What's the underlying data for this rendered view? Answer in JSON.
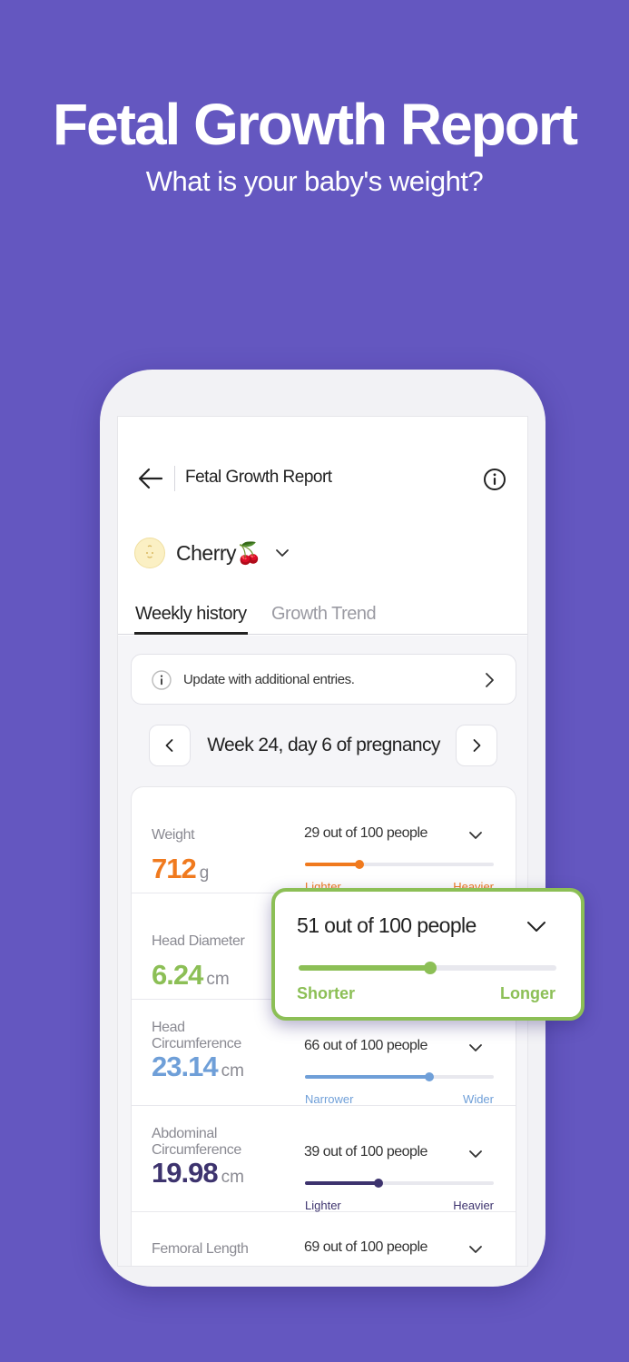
{
  "hero": {
    "title": "Fetal Growth Report",
    "subtitle": "What is your baby's weight?"
  },
  "appbar": {
    "title": "Fetal Growth Report"
  },
  "baby": {
    "name": "Cherry🍒"
  },
  "tabs": [
    {
      "label": "Weekly history",
      "active": true
    },
    {
      "label": "Growth Trend",
      "active": false
    }
  ],
  "notice": {
    "text": "Update with additional entries."
  },
  "week": {
    "label": "Week 24, day 6 of pregnancy"
  },
  "metrics": [
    {
      "name": "Weight",
      "value": "712",
      "unit": "g",
      "percentile_text": "29 out of 100 people",
      "percentile": 29,
      "low_label": "Lighter",
      "high_label": "Heavier",
      "color": "#f07a1e"
    },
    {
      "name": "Head Diameter",
      "value": "6.24",
      "unit": "cm",
      "percentile_text": "51 out of 100 people",
      "percentile": 51,
      "low_label": "Shorter",
      "high_label": "Longer",
      "color": "#8cbf56"
    },
    {
      "name": "Head Circumference",
      "value": "23.14",
      "unit": "cm",
      "percentile_text": "66 out of 100 people",
      "percentile": 66,
      "low_label": "Narrower",
      "high_label": "Wider",
      "color": "#6f9fd8"
    },
    {
      "name": "Abdominal Circumference",
      "value": "19.98",
      "unit": "cm",
      "percentile_text": "39 out of 100 people",
      "percentile": 39,
      "low_label": "Lighter",
      "high_label": "Heavier",
      "color": "#3d336e"
    },
    {
      "name": "Femoral Length",
      "value": "",
      "unit": "",
      "percentile_text": "69 out of 100 people",
      "percentile": 69,
      "low_label": "",
      "high_label": "",
      "color": "#6457c0"
    }
  ],
  "popup": {
    "percentile_text": "51 out of 100 people",
    "percentile": 51,
    "low_label": "Shorter",
    "high_label": "Longer",
    "color": "#8cbf56"
  },
  "colors": {
    "background": "#6457c0",
    "accent": "#8cbf56"
  }
}
